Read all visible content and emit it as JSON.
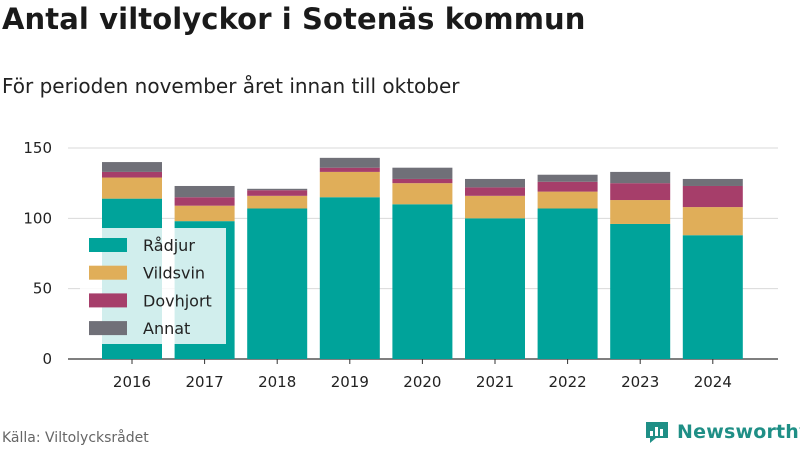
{
  "title": "Antal viltolyckor i Sotenäs kommun",
  "subtitle": "För perioden november året innan till oktober",
  "source": "Källa: Viltolycksrådet",
  "brand": "Newsworthy",
  "colors": {
    "Rådjur": "#00a39a",
    "Vildsvin": "#e0ae59",
    "Dovhjort": "#a63e6a",
    "Annat": "#707078",
    "brand": "#1f8f86"
  },
  "chart_data": {
    "type": "bar",
    "stacked": true,
    "categories": [
      "2016",
      "2017",
      "2018",
      "2019",
      "2020",
      "2021",
      "2022",
      "2023",
      "2024"
    ],
    "series": [
      {
        "name": "Rådjur",
        "values": [
          114,
          98,
          107,
          115,
          110,
          100,
          107,
          96,
          88
        ]
      },
      {
        "name": "Vildsvin",
        "values": [
          15,
          11,
          9,
          18,
          15,
          16,
          12,
          17,
          20
        ]
      },
      {
        "name": "Dovhjort",
        "values": [
          4,
          6,
          4,
          3,
          3,
          6,
          7,
          12,
          15
        ]
      },
      {
        "name": "Annat",
        "values": [
          7,
          8,
          1,
          7,
          8,
          6,
          5,
          8,
          5
        ]
      }
    ],
    "yticks": [
      0,
      50,
      100,
      150
    ],
    "ylim": [
      0,
      150
    ],
    "grid": true,
    "legend_position": "inside-left"
  }
}
